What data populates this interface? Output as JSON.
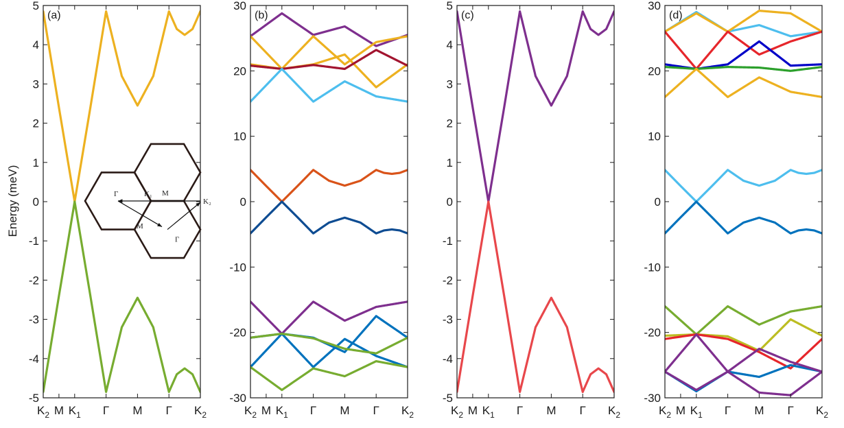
{
  "chart_data": [
    {
      "type": "line",
      "panel_label": "(a)",
      "ylabel": "Energy (meV)",
      "ylim": [
        -5,
        5
      ],
      "yticks": [
        -5,
        -4,
        -3,
        -2,
        -1,
        0,
        1,
        2,
        3,
        4,
        5
      ],
      "path_points": [
        0,
        0.5,
        1,
        2,
        3,
        4,
        5
      ],
      "x_tick_labels": [
        "K2",
        "M",
        "K1",
        "Γ",
        "M",
        "Γ",
        "K2"
      ],
      "series": [
        {
          "color": "#EDB120",
          "x": [
            0,
            0.5,
            1,
            1.5,
            2,
            2.5,
            3,
            3.5,
            4,
            4.25,
            4.5,
            4.75,
            5
          ],
          "y": [
            4.85,
            2.4,
            0,
            2.4,
            4.85,
            3.2,
            2.45,
            3.2,
            4.85,
            4.4,
            4.25,
            4.4,
            4.85
          ]
        },
        {
          "color": "#77AC30",
          "x": [
            0,
            0.5,
            1,
            1.5,
            2,
            2.5,
            3,
            3.5,
            4,
            4.25,
            4.5,
            4.75,
            5
          ],
          "y": [
            -4.85,
            -2.4,
            0,
            -2.4,
            -4.85,
            -3.2,
            -2.45,
            -3.2,
            -4.85,
            -4.4,
            -4.25,
            -4.4,
            -4.85
          ]
        }
      ],
      "inset": {
        "labels": [
          "Γ",
          "K₁",
          "M",
          "K₂",
          "M",
          "Γ"
        ]
      }
    },
    {
      "type": "line",
      "panel_label": "(b)",
      "ylim": [
        -30,
        30
      ],
      "yticks": [
        -30,
        -20,
        -10,
        0,
        10,
        20,
        30
      ],
      "path_points": [
        0,
        0.5,
        1,
        2,
        3,
        4,
        5
      ],
      "x_tick_labels": [
        "K2",
        "M",
        "K1",
        "Γ",
        "M",
        "Γ",
        "K2"
      ],
      "series": [
        {
          "color": "#7E2F8E",
          "x": [
            0,
            1,
            2,
            3,
            4,
            5
          ],
          "y": [
            25.3,
            28.8,
            25.5,
            26.8,
            23.8,
            25.5
          ]
        },
        {
          "color": "#EDB120",
          "x": [
            0,
            1,
            2,
            3,
            4,
            5
          ],
          "y": [
            25.3,
            20.3,
            25.3,
            21.0,
            24.4,
            25.3
          ]
        },
        {
          "color": "#EDB120",
          "x": [
            0,
            1,
            2,
            3,
            4,
            5
          ],
          "y": [
            21.0,
            20.3,
            21.0,
            22.5,
            17.5,
            21.0
          ]
        },
        {
          "color": "#A2142F",
          "x": [
            0,
            1,
            2,
            3,
            4,
            5
          ],
          "y": [
            20.8,
            20.3,
            20.9,
            20.3,
            23.2,
            20.8
          ]
        },
        {
          "color": "#4DBEEE",
          "x": [
            0,
            1,
            2,
            3,
            4,
            5
          ],
          "y": [
            15.3,
            20.3,
            15.3,
            18.4,
            16.1,
            15.3
          ]
        },
        {
          "color": "#D95319",
          "x": [
            0,
            0.5,
            1,
            1.5,
            2,
            2.5,
            3,
            3.5,
            4,
            4.25,
            4.5,
            4.75,
            5
          ],
          "y": [
            4.85,
            2.4,
            0,
            2.4,
            4.85,
            3.2,
            2.45,
            3.2,
            4.85,
            4.4,
            4.25,
            4.4,
            4.85
          ]
        },
        {
          "color": "#0E4C92",
          "x": [
            0,
            0.5,
            1,
            1.5,
            2,
            2.5,
            3,
            3.5,
            4,
            4.25,
            4.5,
            4.75,
            5
          ],
          "y": [
            -4.85,
            -2.4,
            0,
            -2.4,
            -4.85,
            -3.2,
            -2.45,
            -3.2,
            -4.85,
            -4.4,
            -4.25,
            -4.4,
            -4.85
          ]
        },
        {
          "color": "#7E2F8E",
          "x": [
            0,
            1,
            2,
            3,
            4,
            5
          ],
          "y": [
            -15.3,
            -20.2,
            -15.3,
            -18.2,
            -16.1,
            -15.3
          ]
        },
        {
          "color": "#0072BD",
          "x": [
            0,
            1,
            2,
            3,
            4,
            5
          ],
          "y": [
            -20.8,
            -20.2,
            -20.8,
            -23.0,
            -17.5,
            -20.8
          ]
        },
        {
          "color": "#0072BD",
          "x": [
            0,
            1,
            2,
            3,
            4,
            5
          ],
          "y": [
            -25.3,
            -20.2,
            -25.3,
            -21.0,
            -23.6,
            -25.3
          ]
        },
        {
          "color": "#77AC30",
          "x": [
            0,
            1,
            2,
            3,
            4,
            5
          ],
          "y": [
            -25.3,
            -28.8,
            -25.5,
            -26.7,
            -24.4,
            -25.3
          ]
        },
        {
          "color": "#77AC30",
          "x": [
            0,
            1,
            2,
            3,
            4,
            5
          ],
          "y": [
            -20.8,
            -20.2,
            -20.9,
            -22.5,
            -23.2,
            -20.8
          ]
        }
      ]
    },
    {
      "type": "line",
      "panel_label": "(c)",
      "ylim": [
        -5,
        5
      ],
      "yticks": [
        -5,
        -4,
        -3,
        -2,
        -1,
        0,
        1,
        2,
        3,
        4,
        5
      ],
      "path_points": [
        0,
        0.5,
        1,
        2,
        3,
        4,
        5
      ],
      "x_tick_labels": [
        "K2",
        "M",
        "K1",
        "Γ",
        "M",
        "Γ",
        "K2"
      ],
      "series": [
        {
          "color": "#7E2F8E",
          "x": [
            0,
            0.5,
            1,
            1.5,
            2,
            2.5,
            3,
            3.5,
            4,
            4.25,
            4.5,
            4.75,
            5
          ],
          "y": [
            4.85,
            2.4,
            0,
            2.4,
            4.85,
            3.2,
            2.45,
            3.2,
            4.85,
            4.4,
            4.25,
            4.4,
            4.85
          ]
        },
        {
          "color": "#E8474B",
          "x": [
            0,
            0.5,
            1,
            1.5,
            2,
            2.5,
            3,
            3.5,
            4,
            4.25,
            4.5,
            4.75,
            5
          ],
          "y": [
            -4.85,
            -2.4,
            0,
            -2.4,
            -4.85,
            -3.2,
            -2.45,
            -3.2,
            -4.85,
            -4.4,
            -4.25,
            -4.4,
            -4.85
          ]
        }
      ]
    },
    {
      "type": "line",
      "panel_label": "(d)",
      "ylim": [
        -30,
        30
      ],
      "yticks": [
        -30,
        -20,
        -10,
        0,
        10,
        20,
        30
      ],
      "path_points": [
        0,
        0.5,
        1,
        2,
        3,
        4,
        5
      ],
      "x_tick_labels": [
        "K2",
        "M",
        "K1",
        "Γ",
        "M",
        "Γ",
        "K2"
      ],
      "series": [
        {
          "color": "#4DBEEE",
          "x": [
            0,
            1,
            2,
            3,
            4,
            5
          ],
          "y": [
            26.0,
            29.0,
            26.0,
            27.0,
            25.3,
            26.0
          ]
        },
        {
          "color": "#EDB120",
          "x": [
            0,
            1,
            2,
            3,
            4,
            5
          ],
          "y": [
            26.0,
            28.8,
            26.0,
            29.2,
            28.8,
            26.0
          ]
        },
        {
          "color": "#E6262B",
          "x": [
            0,
            1,
            2,
            3,
            4,
            5
          ],
          "y": [
            26.0,
            20.3,
            26.0,
            22.5,
            24.5,
            26.0
          ]
        },
        {
          "color": "#0000C8",
          "x": [
            0,
            1,
            2,
            3,
            4,
            5
          ],
          "y": [
            21.0,
            20.3,
            21.0,
            24.5,
            20.8,
            21.0
          ]
        },
        {
          "color": "#2CA02C",
          "x": [
            0,
            1,
            2,
            3,
            4,
            5
          ],
          "y": [
            20.6,
            20.3,
            20.6,
            20.5,
            20.0,
            20.6
          ]
        },
        {
          "color": "#EDB120",
          "x": [
            0,
            1,
            2,
            3,
            4,
            5
          ],
          "y": [
            16.0,
            20.3,
            16.0,
            19.0,
            16.8,
            16.0
          ]
        },
        {
          "color": "#4DBEEE",
          "x": [
            0,
            0.5,
            1,
            1.5,
            2,
            2.5,
            3,
            3.5,
            4,
            4.25,
            4.5,
            4.75,
            5
          ],
          "y": [
            4.85,
            2.4,
            0,
            2.4,
            4.85,
            3.2,
            2.45,
            3.2,
            4.85,
            4.4,
            4.25,
            4.4,
            4.85
          ]
        },
        {
          "color": "#0072BD",
          "x": [
            0,
            0.5,
            1,
            1.5,
            2,
            2.5,
            3,
            3.5,
            4,
            4.25,
            4.5,
            4.75,
            5
          ],
          "y": [
            -4.85,
            -2.4,
            0,
            -2.4,
            -4.85,
            -3.2,
            -2.45,
            -3.2,
            -4.85,
            -4.4,
            -4.25,
            -4.4,
            -4.85
          ]
        },
        {
          "color": "#77AC30",
          "x": [
            0,
            1,
            2,
            3,
            4,
            5
          ],
          "y": [
            -16.0,
            -20.3,
            -16.0,
            -18.8,
            -16.8,
            -16.0
          ]
        },
        {
          "color": "#BCBD22",
          "x": [
            0,
            1,
            2,
            3,
            4,
            5
          ],
          "y": [
            -20.5,
            -20.3,
            -20.6,
            -22.8,
            -18.0,
            -20.5
          ]
        },
        {
          "color": "#E6262B",
          "x": [
            0,
            1,
            2,
            3,
            4,
            5
          ],
          "y": [
            -21.0,
            -20.3,
            -21.0,
            -23.0,
            -25.5,
            -21.0
          ]
        },
        {
          "color": "#0072BD",
          "x": [
            0,
            1,
            2,
            3,
            4,
            5
          ],
          "y": [
            -26.0,
            -29.0,
            -26.0,
            -26.8,
            -25.0,
            -26.0
          ]
        },
        {
          "color": "#7E2F8E",
          "x": [
            0,
            1,
            2,
            3,
            4,
            5
          ],
          "y": [
            -26.0,
            -20.3,
            -26.0,
            -22.5,
            -24.5,
            -26.0
          ]
        },
        {
          "color": "#7E2F8E",
          "x": [
            0,
            1,
            2,
            3,
            4,
            5
          ],
          "y": [
            -26.0,
            -28.8,
            -26.0,
            -29.2,
            -29.6,
            -26.0
          ]
        }
      ]
    }
  ]
}
